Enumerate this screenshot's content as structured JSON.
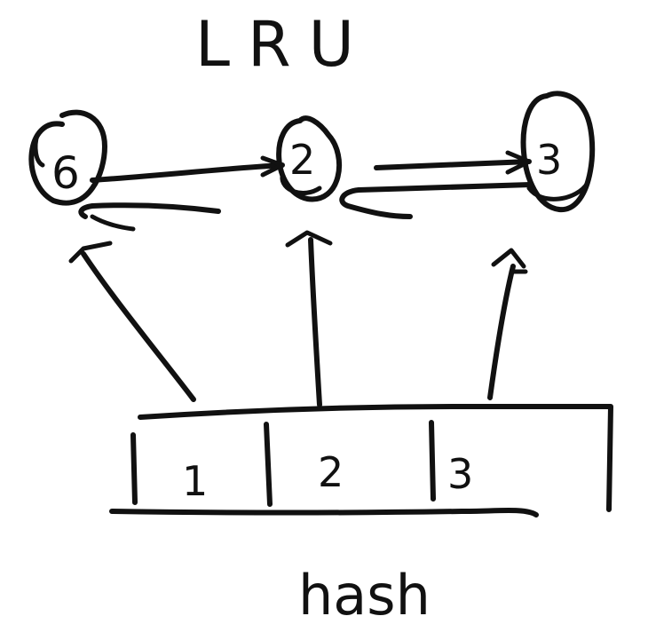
{
  "title": "LRU",
  "list_nodes": [
    {
      "label": "6"
    },
    {
      "label": "2"
    },
    {
      "label": "3"
    }
  ],
  "hash_cells": [
    {
      "label": "1"
    },
    {
      "label": "2"
    },
    {
      "label": "3"
    }
  ],
  "hash_label": "hash",
  "ink_color": "#111111"
}
